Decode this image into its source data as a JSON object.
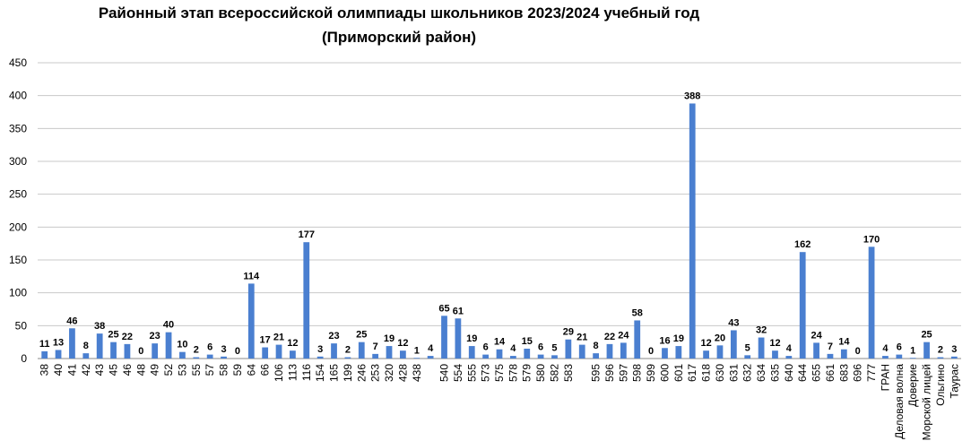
{
  "chart_data": {
    "type": "bar",
    "title": "Районный этап всероссийской олимпиады школьников  2023/2024 учебный год",
    "subtitle": "(Приморский район)",
    "categories": [
      "38",
      "40",
      "41",
      "42",
      "43",
      "45",
      "46",
      "48",
      "49",
      "52",
      "53",
      "55",
      "57",
      "58",
      "59",
      "64",
      "66",
      "106",
      "113",
      "116",
      "154",
      "165",
      "199",
      "246",
      "253",
      "320",
      "428",
      "438",
      null,
      "540",
      "554",
      "555",
      "573",
      "575",
      "578",
      "579",
      "580",
      "582",
      "583",
      null,
      "595",
      "596",
      "597",
      "598",
      "599",
      "600",
      "601",
      "617",
      "618",
      "630",
      "631",
      "632",
      "634",
      "635",
      "640",
      "644",
      "655",
      "661",
      "683",
      "696",
      "777",
      "ГРАН",
      "Деловая волна",
      "Доверие",
      "Морской лицей",
      "Ольгино",
      "Таурас"
    ],
    "values": [
      11,
      13,
      46,
      8,
      38,
      25,
      22,
      0,
      23,
      40,
      10,
      2,
      6,
      3,
      0,
      114,
      17,
      21,
      12,
      177,
      3,
      23,
      2,
      25,
      7,
      19,
      12,
      1,
      4,
      65,
      61,
      19,
      6,
      14,
      4,
      15,
      6,
      5,
      29,
      21,
      8,
      22,
      24,
      58,
      0,
      16,
      19,
      388,
      12,
      20,
      43,
      5,
      32,
      12,
      4,
      162,
      24,
      7,
      14,
      0,
      170,
      4,
      6,
      1,
      25,
      2,
      3
    ],
    "color": "#4a7fd0",
    "ylim": [
      0,
      450
    ],
    "yticks": [
      0,
      50,
      100,
      150,
      200,
      250,
      300,
      350,
      400,
      450
    ],
    "grid": true
  }
}
